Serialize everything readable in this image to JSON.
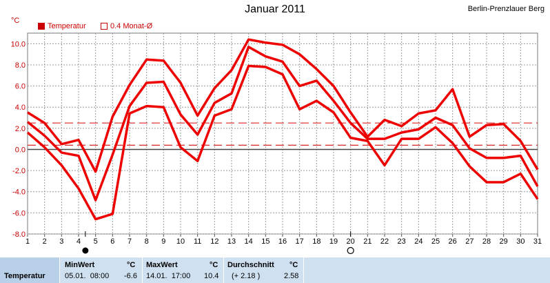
{
  "title": "Januar 2011",
  "station": "Berlin-Prenzlauer Berg",
  "unit": "°C",
  "legend": {
    "series1": "Temperatur",
    "series2": "0.4 Monat-Ø"
  },
  "colors": {
    "series": "#ee0000",
    "axis": "#cc0000",
    "grid": "#999999",
    "zero": "#444444",
    "panel": "#cfe0f0"
  },
  "chart_data": {
    "type": "line",
    "title": "Januar 2011",
    "ylabel": "°C",
    "ylim": [
      -8,
      11
    ],
    "xlim": [
      1,
      31
    ],
    "grid": true,
    "legend_position": "top-left",
    "x": [
      1,
      2,
      3,
      4,
      5,
      6,
      7,
      8,
      9,
      10,
      11,
      12,
      13,
      14,
      15,
      16,
      17,
      18,
      19,
      20,
      21,
      22,
      23,
      24,
      25,
      26,
      27,
      28,
      29,
      30,
      31
    ],
    "yticks": [
      "10.0",
      "8.0",
      "6.0",
      "4.0",
      "2.0",
      "0.0",
      "-2.0",
      "-4.0",
      "-6.0",
      "-8.0"
    ],
    "xticks": [
      "1",
      "2",
      "3",
      "4",
      "5",
      "6",
      "7",
      "8",
      "9",
      "10",
      "11",
      "12",
      "13",
      "14",
      "15",
      "16",
      "17",
      "18",
      "19",
      "20",
      "21",
      "22",
      "23",
      "24",
      "25",
      "26",
      "27",
      "28",
      "29",
      "30",
      "31"
    ],
    "series": [
      {
        "name": "Temperatur max",
        "values": [
          3.5,
          2.5,
          0.5,
          0.9,
          -2.1,
          3.1,
          6.1,
          8.5,
          8.4,
          6.3,
          3.2,
          5.8,
          7.5,
          10.4,
          10.1,
          9.9,
          9.0,
          7.6,
          6.0,
          3.5,
          1.2,
          2.8,
          2.2,
          3.4,
          3.7,
          5.7,
          1.2,
          2.3,
          2.4,
          0.8,
          -1.9
        ]
      },
      {
        "name": "Temperatur mean",
        "values": [
          2.6,
          1.3,
          -0.3,
          -0.6,
          -4.8,
          -0.5,
          4.1,
          6.3,
          6.4,
          3.3,
          1.4,
          4.4,
          5.3,
          9.7,
          8.8,
          8.3,
          6.0,
          6.5,
          4.6,
          2.5,
          1.0,
          1.0,
          1.6,
          1.9,
          3.0,
          2.3,
          0.1,
          -0.8,
          -0.8,
          -0.6,
          -3.5
        ]
      },
      {
        "name": "Temperatur min",
        "values": [
          1.6,
          0.2,
          -1.5,
          -3.7,
          -6.6,
          -6.1,
          3.4,
          4.1,
          4.0,
          0.2,
          -1.1,
          3.2,
          3.8,
          7.9,
          7.8,
          7.1,
          3.8,
          4.6,
          3.5,
          1.1,
          0.8,
          -1.5,
          1.0,
          1.0,
          2.1,
          0.6,
          -1.6,
          -3.1,
          -3.1,
          -2.3,
          -4.7
        ]
      }
    ],
    "reference_lines": [
      {
        "name": "0.4 Monat-Ø upper",
        "value": 2.5
      },
      {
        "name": "0.4 Monat-Ø lower",
        "value": 0.4
      }
    ],
    "markers": [
      {
        "x": 4.4,
        "style": "filled"
      },
      {
        "x": 20,
        "style": "hollow"
      }
    ]
  },
  "table": {
    "row_label": "Temperatur",
    "min": {
      "header": "MinWert",
      "unit": "°C",
      "time": "05.01.  08:00",
      "value": "-6.6"
    },
    "max": {
      "header": "MaxWert",
      "unit": "°C",
      "time": "14.01.  17:00",
      "value": "10.4"
    },
    "avg": {
      "header": "Durchschnitt",
      "unit": "°C",
      "delta": "(+ 2.18 )",
      "value": "2.58"
    }
  }
}
